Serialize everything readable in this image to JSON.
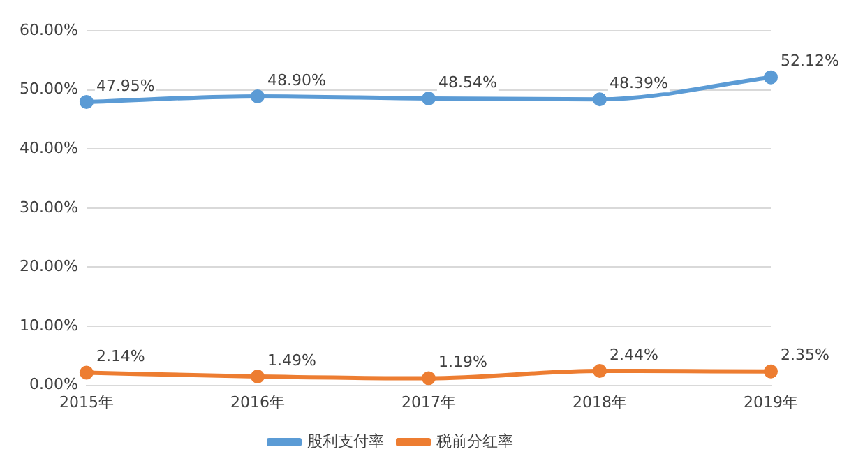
{
  "chart_data": {
    "type": "line",
    "categories": [
      "2015年",
      "2016年",
      "2017年",
      "2018年",
      "2019年"
    ],
    "series": [
      {
        "name": "股利支付率",
        "color": "#5b9bd5",
        "values": [
          47.95,
          48.9,
          48.54,
          48.39,
          52.12
        ],
        "value_labels": [
          "47.95%",
          "48.90%",
          "48.54%",
          "48.39%",
          "52.12%"
        ]
      },
      {
        "name": "税前分红率",
        "color": "#ed7d31",
        "values": [
          2.14,
          1.49,
          1.19,
          2.44,
          2.35
        ],
        "value_labels": [
          "2.14%",
          "1.49%",
          "1.19%",
          "2.44%",
          "2.35%"
        ]
      }
    ],
    "ylim": [
      0,
      60
    ],
    "yticks": [
      {
        "value": 0,
        "label": "0.00%"
      },
      {
        "value": 10,
        "label": "10.00%"
      },
      {
        "value": 20,
        "label": "20.00%"
      },
      {
        "value": 30,
        "label": "30.00%"
      },
      {
        "value": 40,
        "label": "40.00%"
      },
      {
        "value": 50,
        "label": "50.00%"
      },
      {
        "value": 60,
        "label": "60.00%"
      }
    ],
    "grid": "y",
    "legend": "bottom",
    "marker": "circle",
    "line_style": "solid"
  }
}
